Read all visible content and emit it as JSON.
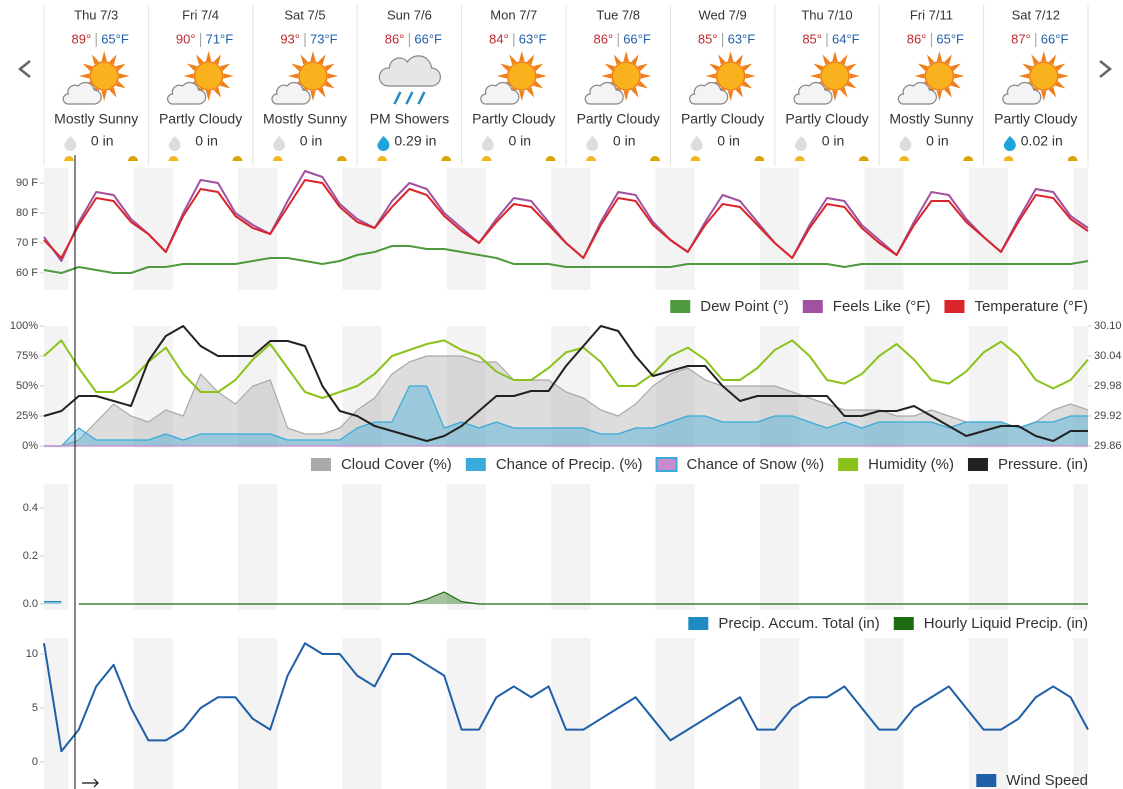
{
  "forecast": {
    "days": [
      {
        "day": "Thu 7/3",
        "high": "89°",
        "low": "65°F",
        "condition": "Mostly Sunny",
        "precip": "0 in"
      },
      {
        "day": "Fri 7/4",
        "high": "90°",
        "low": "71°F",
        "condition": "Partly Cloudy",
        "precip": "0 in"
      },
      {
        "day": "Sat 7/5",
        "high": "93°",
        "low": "73°F",
        "condition": "Mostly Sunny",
        "precip": "0 in"
      },
      {
        "day": "Sun 7/6",
        "high": "86°",
        "low": "66°F",
        "condition": "PM Showers",
        "precip": "0.29 in"
      },
      {
        "day": "Mon 7/7",
        "high": "84°",
        "low": "63°F",
        "condition": "Partly Cloudy",
        "precip": "0 in"
      },
      {
        "day": "Tue 7/8",
        "high": "86°",
        "low": "66°F",
        "condition": "Partly Cloudy",
        "precip": "0 in"
      },
      {
        "day": "Wed 7/9",
        "high": "85°",
        "low": "63°F",
        "condition": "Partly Cloudy",
        "precip": "0 in"
      },
      {
        "day": "Thu 7/10",
        "high": "85°",
        "low": "64°F",
        "condition": "Partly Cloudy",
        "precip": "0 in"
      },
      {
        "day": "Fri 7/11",
        "high": "86°",
        "low": "65°F",
        "condition": "Mostly Sunny",
        "precip": "0 in"
      },
      {
        "day": "Sat 7/12",
        "high": "87°",
        "low": "66°F",
        "condition": "Partly Cloudy",
        "precip": "0.02 in"
      }
    ]
  },
  "chart_data": [
    {
      "type": "line",
      "ylim": [
        55,
        95
      ],
      "yticks": [
        {
          "value": 60,
          "label": "60 F"
        },
        {
          "value": 70,
          "label": "70 F"
        },
        {
          "value": 80,
          "label": "80 F"
        },
        {
          "value": 90,
          "label": "90 F"
        }
      ],
      "series": [
        {
          "name": "Dew Point (°)",
          "color": "#4f9a3e",
          "type": "line",
          "values": [
            61,
            60,
            62,
            61,
            60,
            60,
            62,
            62,
            63,
            63,
            63,
            63,
            64,
            65,
            65,
            64,
            63,
            64,
            66,
            67,
            69,
            69,
            68,
            68,
            67,
            66,
            65,
            63,
            63,
            63,
            62,
            62,
            62,
            62,
            62,
            62,
            62,
            63,
            63,
            63,
            63,
            63,
            63,
            63,
            63,
            63,
            62,
            63,
            63,
            63,
            63,
            63,
            63,
            63,
            63,
            63,
            63,
            63,
            63,
            63,
            64
          ]
        },
        {
          "name": "Feels Like (°F)",
          "color": "#a052a0",
          "type": "line",
          "values": [
            72,
            64,
            77,
            87,
            86,
            78,
            73,
            67,
            80,
            91,
            90,
            80,
            76,
            73,
            84,
            94,
            92,
            83,
            78,
            75,
            84,
            90,
            88,
            80,
            75,
            70,
            78,
            85,
            84,
            77,
            70,
            65,
            77,
            87,
            86,
            77,
            71,
            67,
            77,
            86,
            84,
            77,
            70,
            65,
            76,
            85,
            84,
            76,
            71,
            66,
            77,
            87,
            86,
            78,
            72,
            67,
            78,
            88,
            87,
            79,
            75
          ]
        },
        {
          "name": "Temperature (°F)",
          "color": "#d9252b",
          "type": "line",
          "values": [
            71,
            65,
            76,
            85,
            84,
            77,
            73,
            67,
            79,
            88,
            87,
            79,
            75,
            73,
            82,
            91,
            90,
            82,
            77,
            75,
            82,
            88,
            86,
            79,
            74,
            70,
            77,
            83,
            82,
            76,
            70,
            65,
            76,
            85,
            84,
            76,
            71,
            67,
            76,
            83,
            82,
            76,
            70,
            65,
            75,
            83,
            82,
            75,
            70,
            66,
            76,
            84,
            84,
            77,
            72,
            67,
            77,
            86,
            85,
            78,
            74
          ]
        }
      ]
    },
    {
      "type": "combo",
      "ylim": [
        0,
        100
      ],
      "yticks": [
        {
          "value": 0,
          "label": "0%"
        },
        {
          "value": 25,
          "label": "25%"
        },
        {
          "value": 50,
          "label": "50%"
        },
        {
          "value": 75,
          "label": "75%"
        },
        {
          "value": 100,
          "label": "100%"
        }
      ],
      "y2lim": [
        29.86,
        30.1
      ],
      "y2ticks": [
        29.86,
        29.92,
        29.98,
        30.04,
        {
          "value": 30.1,
          "label": "30.10"
        }
      ],
      "series": [
        {
          "name": "Cloud Cover (%)",
          "color": "#aaaaaa",
          "type": "area",
          "values": [
            0,
            0,
            5,
            20,
            35,
            25,
            20,
            30,
            25,
            60,
            45,
            35,
            50,
            55,
            15,
            10,
            10,
            15,
            30,
            40,
            60,
            70,
            75,
            75,
            75,
            70,
            70,
            55,
            55,
            55,
            45,
            40,
            30,
            25,
            35,
            50,
            60,
            65,
            55,
            50,
            50,
            50,
            50,
            45,
            40,
            35,
            30,
            30,
            30,
            25,
            25,
            30,
            25,
            20,
            20,
            20,
            15,
            20,
            30,
            35,
            30
          ]
        },
        {
          "name": "Chance of Precip. (%)",
          "color": "#3aaad8",
          "type": "area",
          "values": [
            0,
            0,
            15,
            5,
            5,
            5,
            5,
            10,
            5,
            10,
            10,
            10,
            10,
            10,
            5,
            5,
            5,
            5,
            15,
            20,
            20,
            50,
            50,
            15,
            20,
            15,
            20,
            15,
            15,
            15,
            15,
            15,
            10,
            10,
            15,
            15,
            20,
            25,
            25,
            20,
            20,
            20,
            25,
            25,
            20,
            15,
            20,
            15,
            20,
            20,
            20,
            20,
            15,
            20,
            20,
            20,
            15,
            20,
            20,
            25,
            25
          ]
        },
        {
          "name": "Chance of Snow (%)",
          "color": "#c98bd0",
          "type": "area",
          "values": [
            0,
            0,
            0,
            0,
            0,
            0,
            0,
            0,
            0,
            0,
            0,
            0,
            0,
            0,
            0,
            0,
            0,
            0,
            0,
            0,
            0,
            0,
            0,
            0,
            0,
            0,
            0,
            0,
            0,
            0,
            0,
            0,
            0,
            0,
            0,
            0,
            0,
            0,
            0,
            0,
            0,
            0,
            0,
            0,
            0,
            0,
            0,
            0,
            0,
            0,
            0,
            0,
            0,
            0,
            0,
            0,
            0,
            0,
            0,
            0,
            0
          ]
        },
        {
          "name": "Humidity (%)",
          "color": "#8bc21c",
          "type": "line",
          "values": [
            75,
            88,
            65,
            45,
            45,
            55,
            70,
            82,
            60,
            45,
            45,
            55,
            72,
            85,
            65,
            45,
            40,
            45,
            50,
            60,
            75,
            80,
            85,
            88,
            80,
            75,
            62,
            55,
            55,
            65,
            78,
            82,
            70,
            50,
            50,
            60,
            75,
            82,
            72,
            55,
            55,
            65,
            80,
            88,
            75,
            55,
            52,
            60,
            75,
            85,
            72,
            55,
            52,
            62,
            78,
            87,
            75,
            55,
            48,
            55,
            72
          ]
        },
        {
          "name": "Pressure. (in)",
          "color": "#222222",
          "type": "line",
          "axis": "y2",
          "values": [
            29.92,
            29.93,
            29.96,
            29.96,
            29.95,
            29.94,
            30.03,
            30.08,
            30.1,
            30.06,
            30.04,
            30.04,
            30.04,
            30.07,
            30.07,
            30.06,
            29.98,
            29.93,
            29.92,
            29.9,
            29.89,
            29.88,
            29.87,
            29.88,
            29.9,
            29.93,
            29.96,
            29.96,
            29.97,
            29.97,
            30.02,
            30.06,
            30.1,
            30.09,
            30.04,
            30.0,
            30.01,
            30.02,
            30.02,
            29.98,
            29.95,
            29.96,
            29.96,
            29.96,
            29.96,
            29.96,
            29.92,
            29.92,
            29.93,
            29.93,
            29.94,
            29.92,
            29.9,
            29.88,
            29.89,
            29.9,
            29.9,
            29.88,
            29.87,
            29.89,
            29.89
          ]
        }
      ]
    },
    {
      "type": "line",
      "ylim": [
        0,
        0.5
      ],
      "yticks": [
        {
          "value": 0,
          "label": "0.0"
        },
        0.2,
        0.4
      ],
      "series": [
        {
          "name": "Precip. Accum. Total (in)",
          "color": "#1e8bc3",
          "type": "area",
          "values": [
            0.01,
            0.01,
            null,
            null,
            null,
            null,
            null,
            null,
            null,
            null,
            null,
            null,
            null,
            null,
            null,
            null,
            null,
            null,
            null,
            null,
            null,
            null,
            null,
            null,
            null,
            null,
            null,
            null,
            null,
            null,
            null,
            null,
            null,
            null,
            null,
            null,
            null,
            null,
            null,
            null,
            null,
            null,
            null,
            null,
            null,
            null,
            null,
            null,
            null,
            null,
            null,
            null,
            null,
            null,
            null,
            null,
            null,
            null,
            null,
            null,
            null
          ]
        },
        {
          "name": "Hourly Liquid Precip. (in)",
          "color": "#1c6b10",
          "type": "area",
          "values": [
            null,
            null,
            0,
            0,
            0,
            0,
            0,
            0,
            0,
            0,
            0,
            0,
            0,
            0,
            0,
            0,
            0,
            0,
            0,
            0,
            0,
            0,
            0.02,
            0.05,
            0.01,
            0,
            0,
            0,
            0,
            0,
            0,
            0,
            0,
            0,
            0,
            0,
            0,
            0,
            0,
            0,
            0,
            0,
            0,
            0,
            0,
            0,
            0,
            0,
            0,
            0,
            0,
            0,
            0,
            0,
            0,
            0,
            0,
            0,
            0,
            0,
            0
          ]
        }
      ]
    },
    {
      "type": "line",
      "ylim": [
        0,
        11.3
      ],
      "yticks": [
        0,
        5,
        10
      ],
      "series": [
        {
          "name": "Wind Speed",
          "color": "#1f5fa8",
          "type": "line",
          "values": [
            11,
            1,
            3,
            7,
            9,
            5,
            2,
            2,
            3,
            5,
            6,
            6,
            4,
            3,
            8,
            11,
            10,
            10,
            8,
            7,
            10,
            10,
            9,
            8,
            3,
            3,
            6,
            7,
            6,
            7,
            3,
            3,
            4,
            5,
            6,
            4,
            2,
            3,
            4,
            5,
            6,
            3,
            3,
            5,
            6,
            6,
            7,
            5,
            3,
            3,
            5,
            6,
            7,
            5,
            3,
            3,
            4,
            6,
            7,
            6,
            3
          ]
        }
      ]
    }
  ]
}
